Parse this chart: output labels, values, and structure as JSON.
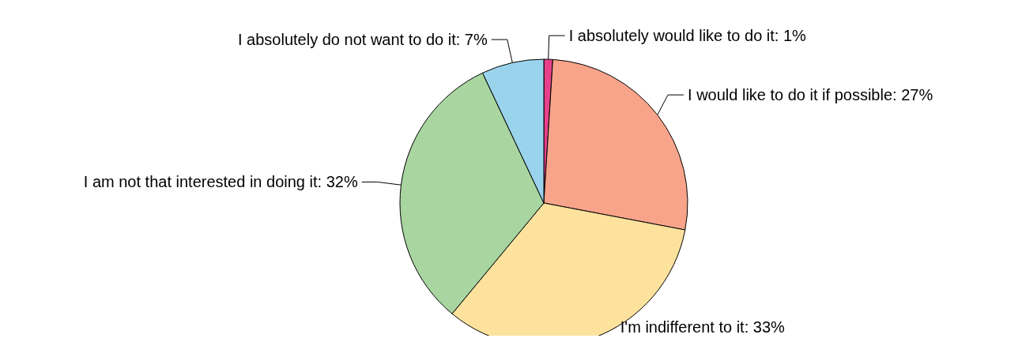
{
  "chart_data": {
    "type": "pie",
    "categories": [
      "I absolutely would like to do it",
      "I would like to do it if possible",
      "I'm indifferent to it",
      "I am not that interested in doing it",
      "I absolutely do not want to do it"
    ],
    "values": [
      1,
      27,
      33,
      32,
      7
    ],
    "value_labels": [
      "1%",
      "27%",
      "33%",
      "32%",
      "7%"
    ],
    "colors": [
      "#e8408a",
      "#f7a48a",
      "#fde29e",
      "#a8d5a0",
      "#9ad3ec"
    ]
  }
}
